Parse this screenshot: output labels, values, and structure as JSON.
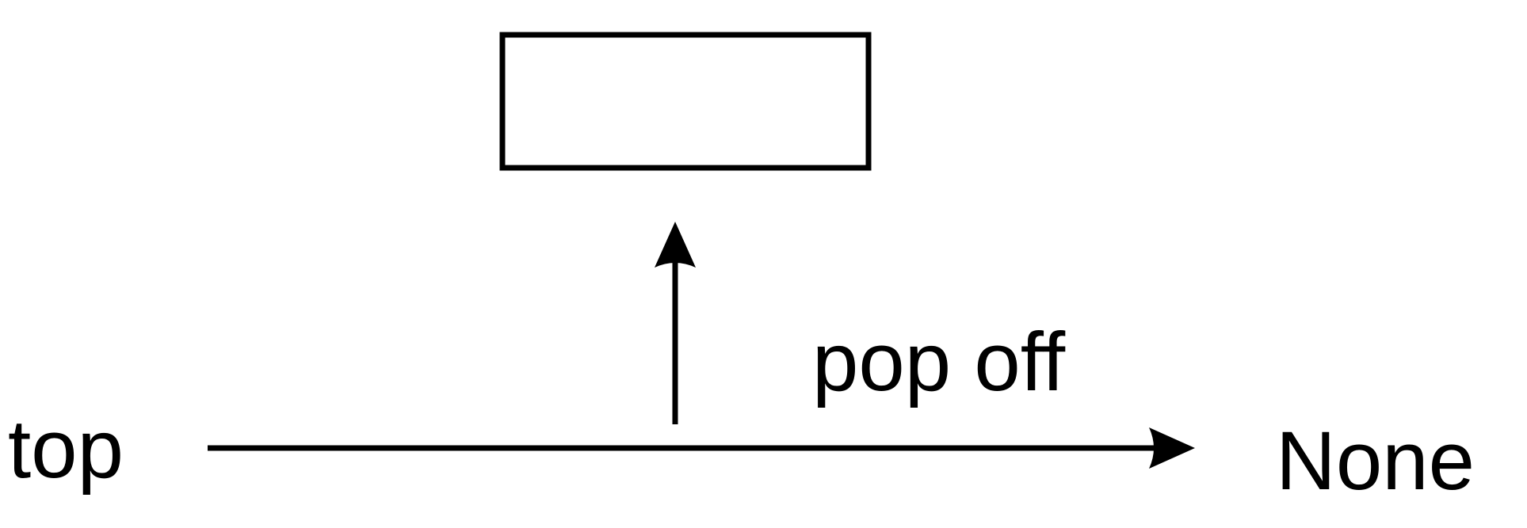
{
  "diagram": {
    "type": "stack-pop-illustration",
    "labels": {
      "left": "top",
      "action": "pop off",
      "right": "None"
    },
    "colors": {
      "stroke": "#000000",
      "background": "#ffffff"
    },
    "shapes": {
      "popped_node": "rectangle",
      "pop_arrow": "arrow-up",
      "pointer_arrow": "arrow-right"
    }
  }
}
